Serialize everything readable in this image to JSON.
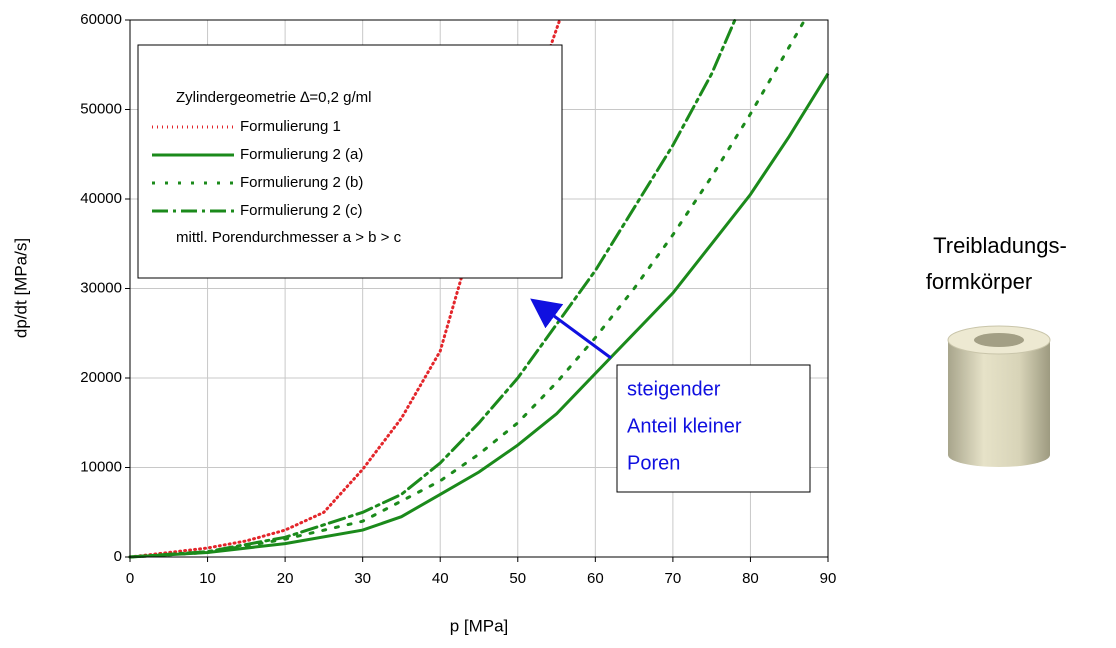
{
  "chart_data": {
    "type": "line",
    "xlabel": "p [MPa]",
    "ylabel": "dp/dt [MPa/s]",
    "xlim": [
      0,
      90
    ],
    "xticks": [
      0,
      10,
      20,
      30,
      40,
      50,
      60,
      70,
      80,
      90
    ],
    "ylim": [
      0,
      60000
    ],
    "yticks": [
      0,
      10000,
      20000,
      30000,
      40000,
      50000,
      60000
    ],
    "grid": true,
    "legend_title": "Zylindergeometrie ∆=0,2 g/ml",
    "legend_note": "mittl. Porendurchmesser a > b > c",
    "legend_position": "upper left",
    "series": [
      {
        "name": "Formulierung 1",
        "color": "#e3262b",
        "dash": "dotted",
        "x": [
          0,
          5,
          10,
          15,
          20,
          25,
          30,
          35,
          40,
          42,
          45,
          48,
          50,
          53,
          55.4
        ],
        "values": [
          0,
          500,
          1000,
          1800,
          3000,
          5000,
          9800,
          15500,
          23000,
          29000,
          38000,
          45000,
          48000,
          54000,
          60000
        ]
      },
      {
        "name": "Formulierung 2 (a)",
        "color": "#1b8a1b",
        "dash": "solid",
        "x": [
          0,
          10,
          20,
          30,
          35,
          40,
          45,
          50,
          55,
          60,
          65,
          70,
          75,
          80,
          85,
          90
        ],
        "values": [
          0,
          500,
          1500,
          3000,
          4500,
          7000,
          9500,
          12500,
          16000,
          20500,
          25000,
          29500,
          35000,
          40500,
          47000,
          54000
        ]
      },
      {
        "name": "Formulierung 2 (b)",
        "color": "#1b8a1b",
        "dash": "sparse-dotted",
        "x": [
          0,
          10,
          20,
          30,
          40,
          45,
          50,
          55,
          60,
          65,
          70,
          75,
          80,
          85,
          87
        ],
        "values": [
          0,
          500,
          2000,
          4000,
          8500,
          11500,
          15000,
          19500,
          24500,
          30000,
          36000,
          42500,
          49500,
          57000,
          60000
        ]
      },
      {
        "name": "Formulierung 2 (c)",
        "color": "#1b8a1b",
        "dash": "dash-dot",
        "x": [
          0,
          10,
          20,
          30,
          35,
          40,
          45,
          50,
          55,
          60,
          65,
          70,
          75,
          78
        ],
        "values": [
          0,
          600,
          2200,
          5000,
          7000,
          10500,
          15000,
          20000,
          26000,
          32000,
          39000,
          46000,
          54000,
          60000
        ]
      }
    ],
    "annotation": [
      "steigender",
      "Anteil kleiner",
      "Poren"
    ],
    "annotation_color": "#1010e0",
    "side_label": [
      "Treibladungs-",
      "formkörper"
    ]
  }
}
